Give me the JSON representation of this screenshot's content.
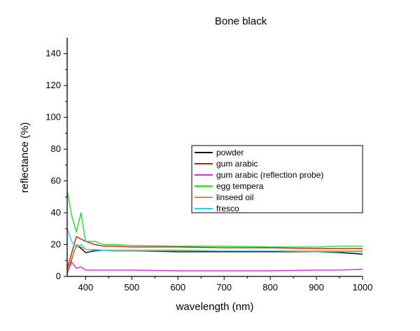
{
  "chart_data": {
    "type": "line",
    "title": "Bone black",
    "xlabel": "wavelength (nm)",
    "ylabel": "reflectance (%)",
    "xlim": [
      360,
      1000
    ],
    "ylim": [
      0,
      150
    ],
    "xticks": [
      400,
      500,
      600,
      700,
      800,
      900,
      1000
    ],
    "yticks": [
      0,
      20,
      40,
      60,
      80,
      100,
      120,
      140
    ],
    "grid": false,
    "legend_position": "center-right",
    "series": [
      {
        "name": "powder",
        "color": "#000000",
        "x": [
          360,
          380,
          400,
          420,
          440,
          460,
          500,
          600,
          700,
          800,
          900,
          950,
          1000
        ],
        "y": [
          2,
          20,
          15,
          16,
          16.5,
          16,
          16,
          15.5,
          15.5,
          15.5,
          15.5,
          15,
          14
        ]
      },
      {
        "name": "gum arabic",
        "color": "#b22222",
        "x": [
          360,
          380,
          400,
          420,
          440,
          460,
          500,
          600,
          700,
          800,
          900,
          950,
          1000
        ],
        "y": [
          5,
          25,
          22,
          20,
          19,
          19,
          18.5,
          18.5,
          18,
          18,
          17.5,
          17.5,
          17.5
        ]
      },
      {
        "name": "gum arabic (reflection probe)",
        "color": "#cc33cc",
        "x": [
          360,
          370,
          380,
          390,
          400,
          450,
          500,
          600,
          700,
          800,
          900,
          950,
          1000
        ],
        "y": [
          2,
          9,
          5,
          6,
          4,
          4,
          4,
          3.5,
          3.5,
          3.5,
          4,
          4,
          4.5
        ]
      },
      {
        "name": "egg tempera",
        "color": "#22dd22",
        "x": [
          360,
          370,
          380,
          390,
          400,
          420,
          440,
          460,
          500,
          600,
          700,
          800,
          900,
          950,
          1000
        ],
        "y": [
          54,
          38,
          28,
          40,
          22,
          22,
          20,
          20,
          19.5,
          19,
          19,
          18.5,
          18.5,
          19,
          19
        ]
      },
      {
        "name": "linseed oil",
        "color": "#ff7f24",
        "x": [
          360,
          380,
          400,
          420,
          440,
          460,
          500,
          600,
          700,
          800,
          900,
          950,
          1000
        ],
        "y": [
          3,
          20,
          17,
          17,
          16.5,
          16.5,
          16.5,
          16.5,
          16,
          16,
          16,
          16,
          16
        ]
      },
      {
        "name": "fresco",
        "color": "#22d3ee",
        "x": [
          360,
          370,
          380,
          390,
          400,
          420,
          440,
          460,
          500,
          600,
          700,
          800,
          900,
          950,
          1000
        ],
        "y": [
          30,
          22,
          18,
          20,
          17,
          16.5,
          16.5,
          16,
          16,
          16,
          16,
          16,
          15.5,
          15.5,
          15.5
        ]
      }
    ]
  }
}
